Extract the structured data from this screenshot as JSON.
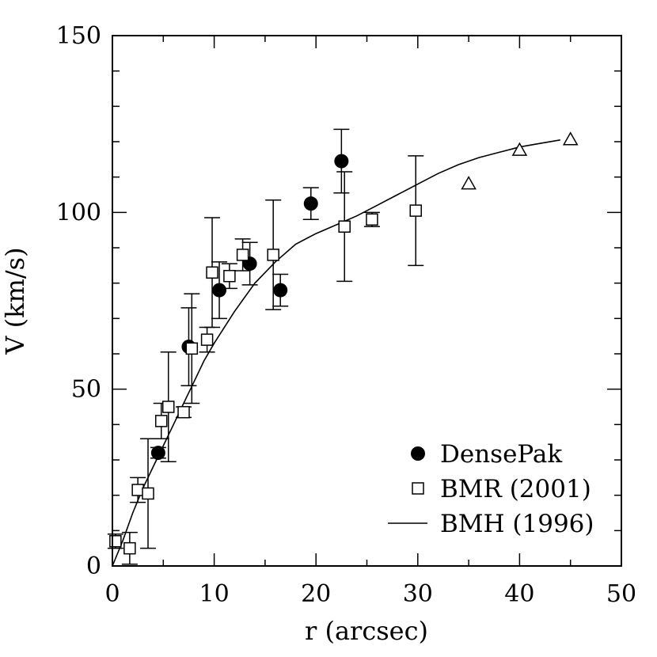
{
  "chart_data": {
    "type": "scatter",
    "xlabel": "r (arcsec)",
    "ylabel": "V (km/s)",
    "xlim": [
      0,
      50
    ],
    "ylim": [
      0,
      150
    ],
    "x_ticks": [
      "0",
      "10",
      "20",
      "30",
      "40",
      "50"
    ],
    "y_ticks": [
      "0",
      "50",
      "100",
      "150"
    ],
    "legend_position": "bottom-right",
    "series": [
      {
        "name": "DensePak",
        "marker": "filled-circle",
        "points": [
          {
            "x": 4.5,
            "y": 32,
            "err": 1.5
          },
          {
            "x": 7.5,
            "y": 62,
            "err": 11
          },
          {
            "x": 10.5,
            "y": 78,
            "err": 8
          },
          {
            "x": 13.5,
            "y": 85.5,
            "err": 6
          },
          {
            "x": 16.5,
            "y": 78,
            "err": 4.5
          },
          {
            "x": 19.5,
            "y": 102.5,
            "err": 4.5
          },
          {
            "x": 22.5,
            "y": 114.5,
            "err": 9
          }
        ]
      },
      {
        "name": "BMR (2001)",
        "marker": "open-square",
        "points": [
          {
            "x": 0.3,
            "y": 7,
            "err": 2
          },
          {
            "x": 1.7,
            "y": 5,
            "err": 4.5
          },
          {
            "x": 2.5,
            "y": 21.5,
            "err": 3.5
          },
          {
            "x": 3.5,
            "y": 20.5,
            "err": 15.5
          },
          {
            "x": 4.8,
            "y": 41,
            "err": 5
          },
          {
            "x": 5.5,
            "y": 45,
            "err": 15.5
          },
          {
            "x": 7,
            "y": 43.5,
            "err": 1.5
          },
          {
            "x": 7.8,
            "y": 61.5,
            "err": 15.5
          },
          {
            "x": 9.3,
            "y": 64,
            "err": 3.5
          },
          {
            "x": 9.8,
            "y": 83,
            "err": 15.5
          },
          {
            "x": 11.5,
            "y": 82,
            "err": 3.5
          },
          {
            "x": 12.8,
            "y": 88,
            "err": 4.5
          },
          {
            "x": 15.8,
            "y": 88,
            "err": 15.5
          },
          {
            "x": 22.8,
            "y": 96,
            "err": 15.5
          },
          {
            "x": 25.5,
            "y": 98,
            "err": 2
          },
          {
            "x": 29.8,
            "y": 100.5,
            "err": 15.5
          }
        ]
      },
      {
        "name": "Triangles",
        "marker": "open-triangle",
        "points": [
          {
            "x": 35,
            "y": 108
          },
          {
            "x": 40,
            "y": 117.5
          },
          {
            "x": 45,
            "y": 120.5
          }
        ]
      },
      {
        "name": "BMH (1996)",
        "marker": "line",
        "x": [
          0,
          1,
          2,
          3,
          4,
          5,
          6,
          7,
          8,
          9,
          10,
          12,
          14,
          16,
          18,
          20,
          22,
          24,
          26,
          28,
          30,
          32,
          34,
          36,
          38,
          40,
          42,
          44
        ],
        "y": [
          0,
          7,
          15,
          22,
          28,
          34,
          40,
          46,
          52,
          58,
          63,
          72,
          80,
          86,
          91,
          94,
          96.5,
          99,
          102,
          105,
          108,
          111,
          113.5,
          115.5,
          117,
          118.5,
          119.5,
          120.5
        ]
      }
    ],
    "legend": [
      {
        "label": "DensePak",
        "marker": "filled-circle"
      },
      {
        "label": "BMR (2001)",
        "marker": "open-square"
      },
      {
        "label": "BMH (1996)",
        "marker": "line"
      }
    ]
  }
}
